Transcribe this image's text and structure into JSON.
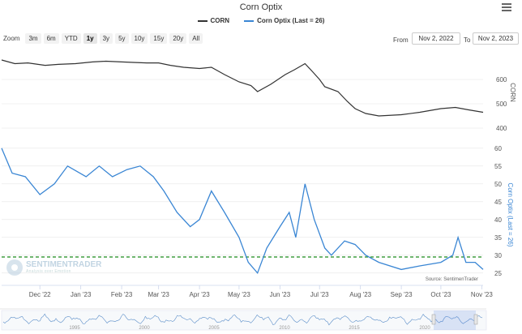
{
  "title": "Corn Optix",
  "legend": [
    {
      "name": "CORN",
      "color": "#333333"
    },
    {
      "name": "Corn Optix (Last = 26)",
      "color": "#3a86d4"
    }
  ],
  "range_selector": {
    "label": "Zoom",
    "buttons": [
      "3m",
      "6m",
      "YTD",
      "1y",
      "3y",
      "5y",
      "10y",
      "15y",
      "20y",
      "All"
    ],
    "selected": "1y",
    "from_label": "From",
    "from_value": "Nov 2, 2022",
    "to_label": "To",
    "to_value": "Nov 2, 2023"
  },
  "watermark": {
    "name": "SENTIMENTRADER",
    "tagline": "Analysis over Emotion"
  },
  "source": "Source: SentimenTrader",
  "colors": {
    "price": "#333333",
    "optix": "#3a86d4",
    "reference": "#1a8a1a"
  },
  "chart_data": [
    {
      "type": "line",
      "series": [
        {
          "name": "CORN",
          "color": "#333333",
          "x": [
            "2022-11-02",
            "2022-11-12",
            "2022-11-22",
            "2022-12-05",
            "2022-12-15",
            "2022-12-28",
            "2023-01-10",
            "2023-01-20",
            "2023-02-01",
            "2023-02-10",
            "2023-02-20",
            "2023-03-01",
            "2023-03-10",
            "2023-03-20",
            "2023-04-01",
            "2023-04-10",
            "2023-04-20",
            "2023-05-01",
            "2023-05-10",
            "2023-05-15",
            "2023-05-25",
            "2023-06-05",
            "2023-06-12",
            "2023-06-20",
            "2023-06-26",
            "2023-07-01",
            "2023-07-05",
            "2023-07-15",
            "2023-07-22",
            "2023-07-28",
            "2023-08-05",
            "2023-08-15",
            "2023-09-01",
            "2023-09-15",
            "2023-10-01",
            "2023-10-12",
            "2023-10-22",
            "2023-11-02"
          ],
          "y": [
            680,
            665,
            668,
            658,
            662,
            665,
            672,
            675,
            672,
            670,
            668,
            668,
            658,
            650,
            645,
            650,
            620,
            590,
            575,
            550,
            580,
            620,
            640,
            665,
            630,
            600,
            570,
            550,
            510,
            480,
            460,
            450,
            455,
            465,
            480,
            485,
            475,
            465
          ]
        }
      ],
      "y_axis": {
        "label": "CORN",
        "ticks": [
          400,
          500,
          600
        ],
        "range": [
          400,
          700
        ]
      }
    },
    {
      "type": "line",
      "series": [
        {
          "name": "Corn Optix (Last = 26)",
          "color": "#3a86d4",
          "x": [
            "2022-11-02",
            "2022-11-10",
            "2022-11-20",
            "2022-12-01",
            "2022-12-12",
            "2022-12-22",
            "2023-01-05",
            "2023-01-15",
            "2023-01-25",
            "2023-02-05",
            "2023-02-15",
            "2023-02-25",
            "2023-03-05",
            "2023-03-15",
            "2023-03-25",
            "2023-04-01",
            "2023-04-10",
            "2023-04-20",
            "2023-05-01",
            "2023-05-08",
            "2023-05-15",
            "2023-05-22",
            "2023-06-01",
            "2023-06-08",
            "2023-06-13",
            "2023-06-20",
            "2023-06-27",
            "2023-07-05",
            "2023-07-10",
            "2023-07-20",
            "2023-07-28",
            "2023-08-05",
            "2023-08-15",
            "2023-09-01",
            "2023-09-15",
            "2023-10-01",
            "2023-10-10",
            "2023-10-14",
            "2023-10-20",
            "2023-10-27",
            "2023-11-02"
          ],
          "y": [
            60,
            53,
            52,
            47,
            50,
            55,
            52,
            55,
            52,
            54,
            55,
            52,
            48,
            42,
            38,
            40,
            48,
            42,
            35,
            28,
            25,
            32,
            38,
            42,
            35,
            50,
            40,
            32,
            30,
            34,
            33,
            30,
            28,
            26,
            27,
            28,
            30,
            35,
            28,
            28,
            26
          ]
        }
      ],
      "y_axis": {
        "label": "Corn Optix (Last = 26)",
        "ticks": [
          25,
          30,
          35,
          40,
          45,
          50,
          55,
          60
        ],
        "range": [
          22,
          62
        ]
      },
      "reference_line": {
        "value": 29.5,
        "style": "dashed",
        "color": "#1a8a1a"
      },
      "x_axis": {
        "ticks": [
          "Dec '22",
          "Jan '23",
          "Feb '23",
          "Mar '23",
          "Apr '23",
          "May '23",
          "Jun '23",
          "Jul '23",
          "Aug '23",
          "Sep '23",
          "Oct '23",
          "Nov '23"
        ]
      }
    },
    {
      "type": "area",
      "role": "navigator",
      "x_ticks": [
        "1995",
        "2000",
        "2005",
        "2010",
        "2015",
        "2020"
      ]
    }
  ]
}
